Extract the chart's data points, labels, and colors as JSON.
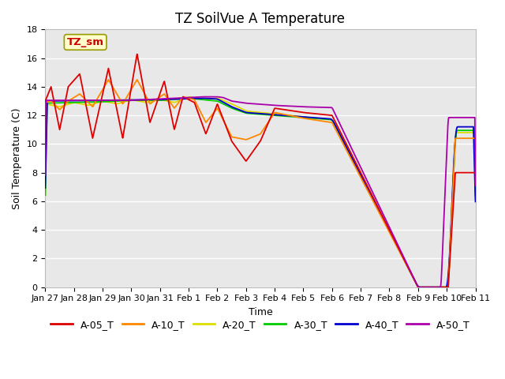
{
  "title": "TZ SoilVue A Temperature",
  "xlabel": "Time",
  "ylabel": "Soil Temperature (C)",
  "ylim": [
    0,
    18
  ],
  "background_color": "#e8e8e8",
  "plot_bg_color": "#e8e8e8",
  "annotation_label": "TZ_sm",
  "annotation_color": "#cc0000",
  "annotation_bg": "#ffffcc",
  "annotation_edge": "#999900",
  "series_colors": {
    "A-05_T": "#dd0000",
    "A-10_T": "#ff8800",
    "A-20_T": "#dddd00",
    "A-30_T": "#00cc00",
    "A-40_T": "#0000cc",
    "A-50_T": "#aa00aa"
  },
  "x_tick_labels": [
    "Jan 27",
    "Jan 28",
    "Jan 29",
    "Jan 30",
    "Jan 31",
    "Feb 1",
    "Feb 2",
    "Feb 3",
    "Feb 4",
    "Feb 5",
    "Feb 6",
    "Feb 7",
    "Feb 8",
    "Feb 9",
    "Feb 10",
    "Feb 11"
  ],
  "title_fontsize": 12,
  "axis_fontsize": 9,
  "tick_fontsize": 8,
  "legend_fontsize": 9
}
